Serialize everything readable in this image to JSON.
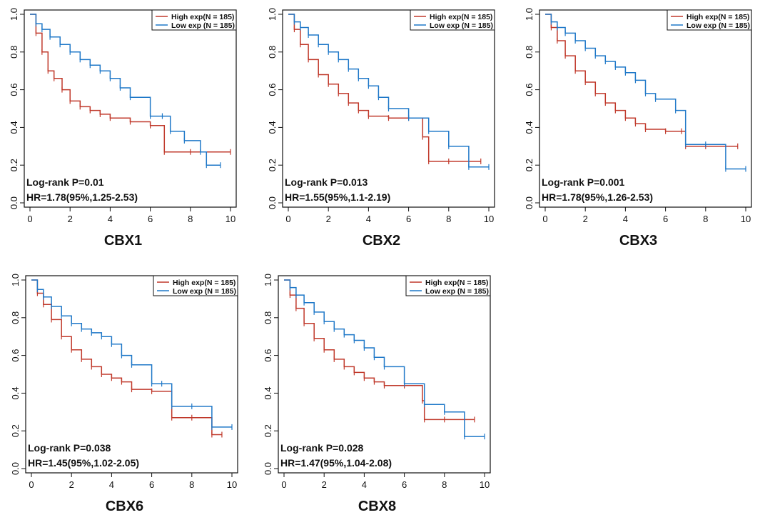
{
  "figure": {
    "panels": [
      {
        "gene": "CBX1",
        "logrank": "Log-rank P=0.01",
        "hr": "HR=1.78(95%,1.25-2.53)",
        "legend_high": "High exp(N = 185)",
        "legend_low": "Low exp (N = 185)"
      },
      {
        "gene": "CBX2",
        "logrank": "Log-rank P=0.013",
        "hr": "HR=1.55(95%,1.1-2.19)",
        "legend_high": "High exp(N = 185)",
        "legend_low": "Low exp (N = 185)"
      },
      {
        "gene": "CBX3",
        "logrank": "Log-rank P=0.001",
        "hr": "HR=1.78(95%,1.26-2.53)",
        "legend_high": "High exp(N = 185)",
        "legend_low": "Low exp (N = 185)"
      },
      {
        "gene": "CBX6",
        "logrank": "Log-rank P=0.038",
        "hr": "HR=1.45(95%,1.02-2.05)",
        "legend_high": "High exp(N = 185)",
        "legend_low": "Low exp (N = 185)"
      },
      {
        "gene": "CBX8",
        "logrank": "Log-rank P=0.028",
        "hr": "HR=1.47(95%,1.04-2.08)",
        "legend_high": "High exp(N = 185)",
        "legend_low": "Low exp (N = 185)"
      }
    ]
  },
  "colors": {
    "high": "#c0392b",
    "low": "#1f78c8",
    "axis": "#111111"
  },
  "chart_data": [
    {
      "type": "line",
      "title": "CBX1",
      "xlim": [
        0,
        10
      ],
      "ylim": [
        0,
        1
      ],
      "x_ticks": [
        0,
        2,
        4,
        6,
        8,
        10
      ],
      "y_ticks": [
        0.0,
        0.2,
        0.4,
        0.6,
        0.8,
        1.0
      ],
      "y_tick_labels": [
        "0.0",
        "0.2",
        "0.4",
        "0.6",
        "0.8",
        "1.0"
      ],
      "series": [
        {
          "name": "High exp(N = 185)",
          "key": "high",
          "x": [
            0,
            0.3,
            0.6,
            0.9,
            1.2,
            1.6,
            2.0,
            2.5,
            3.0,
            3.5,
            4.0,
            5.0,
            6.0,
            6.7,
            8.0,
            10.0
          ],
          "y": [
            1.0,
            0.9,
            0.8,
            0.7,
            0.66,
            0.6,
            0.54,
            0.51,
            0.49,
            0.47,
            0.45,
            0.43,
            0.41,
            0.27,
            0.27,
            0.27
          ]
        },
        {
          "name": "Low exp (N = 185)",
          "key": "low",
          "x": [
            0,
            0.3,
            0.6,
            1.0,
            1.5,
            2.0,
            2.5,
            3.0,
            3.5,
            4.0,
            4.5,
            5.0,
            6.0,
            6.6,
            7.0,
            7.7,
            8.5,
            8.8,
            9.5
          ],
          "y": [
            1.0,
            0.95,
            0.92,
            0.88,
            0.84,
            0.8,
            0.76,
            0.73,
            0.7,
            0.66,
            0.61,
            0.56,
            0.46,
            0.46,
            0.38,
            0.33,
            0.27,
            0.2,
            0.2
          ]
        }
      ]
    },
    {
      "type": "line",
      "title": "CBX2",
      "xlim": [
        0,
        10
      ],
      "ylim": [
        0,
        1
      ],
      "x_ticks": [
        0,
        2,
        4,
        6,
        8,
        10
      ],
      "y_ticks": [
        0.0,
        0.2,
        0.4,
        0.6,
        0.8,
        1.0
      ],
      "y_tick_labels": [
        "0.0",
        "0.2",
        "0.4",
        "0.6",
        "0.8",
        "1.0"
      ],
      "series": [
        {
          "name": "High exp(N = 185)",
          "key": "high",
          "x": [
            0,
            0.3,
            0.6,
            1.0,
            1.5,
            2.0,
            2.5,
            3.0,
            3.5,
            4.0,
            5.0,
            6.0,
            6.7,
            7.0,
            8.0,
            9.6
          ],
          "y": [
            1.0,
            0.92,
            0.84,
            0.76,
            0.68,
            0.63,
            0.58,
            0.53,
            0.49,
            0.46,
            0.45,
            0.45,
            0.35,
            0.22,
            0.22,
            0.22
          ]
        },
        {
          "name": "Low exp (N = 185)",
          "key": "low",
          "x": [
            0,
            0.3,
            0.6,
            1.0,
            1.5,
            2.0,
            2.5,
            3.0,
            3.5,
            4.0,
            4.5,
            5.0,
            6.0,
            7.0,
            8.0,
            9.0,
            10.0
          ],
          "y": [
            1.0,
            0.96,
            0.93,
            0.89,
            0.84,
            0.8,
            0.76,
            0.71,
            0.66,
            0.62,
            0.56,
            0.5,
            0.45,
            0.38,
            0.3,
            0.19,
            0.19
          ]
        }
      ]
    },
    {
      "type": "line",
      "title": "CBX3",
      "xlim": [
        0,
        10
      ],
      "ylim": [
        0,
        1
      ],
      "x_ticks": [
        0,
        2,
        4,
        6,
        8,
        10
      ],
      "y_ticks": [
        0.0,
        0.2,
        0.4,
        0.6,
        0.8,
        1.0
      ],
      "y_tick_labels": [
        "0.0",
        "0.2",
        "0.4",
        "0.6",
        "0.8",
        "1.0"
      ],
      "series": [
        {
          "name": "High exp(N = 185)",
          "key": "high",
          "x": [
            0,
            0.3,
            0.6,
            1.0,
            1.5,
            2.0,
            2.5,
            3.0,
            3.5,
            4.0,
            4.5,
            5.0,
            6.0,
            6.8,
            7.0,
            8.0,
            9.6
          ],
          "y": [
            1.0,
            0.93,
            0.86,
            0.78,
            0.7,
            0.64,
            0.58,
            0.53,
            0.49,
            0.45,
            0.42,
            0.39,
            0.38,
            0.38,
            0.3,
            0.3,
            0.3
          ]
        },
        {
          "name": "Low exp (N = 185)",
          "key": "low",
          "x": [
            0,
            0.3,
            0.6,
            1.0,
            1.5,
            2.0,
            2.5,
            3.0,
            3.5,
            4.0,
            4.5,
            5.0,
            5.5,
            6.5,
            7.0,
            8.0,
            9.0,
            10.0
          ],
          "y": [
            1.0,
            0.96,
            0.93,
            0.9,
            0.86,
            0.82,
            0.78,
            0.75,
            0.72,
            0.69,
            0.65,
            0.58,
            0.55,
            0.49,
            0.31,
            0.31,
            0.18,
            0.18
          ]
        }
      ]
    },
    {
      "type": "line",
      "title": "CBX6",
      "xlim": [
        0,
        10
      ],
      "ylim": [
        0,
        1
      ],
      "x_ticks": [
        0,
        2,
        4,
        6,
        8,
        10
      ],
      "y_ticks": [
        0.0,
        0.2,
        0.4,
        0.6,
        0.8,
        1.0
      ],
      "y_tick_labels": [
        "0.0",
        "0.2",
        "0.4",
        "0.6",
        "0.8",
        "1.0"
      ],
      "series": [
        {
          "name": "High exp(N = 185)",
          "key": "high",
          "x": [
            0,
            0.3,
            0.6,
            1.0,
            1.5,
            2.0,
            2.5,
            3.0,
            3.5,
            4.0,
            4.5,
            5.0,
            6.0,
            7.0,
            8.0,
            9.0,
            9.5
          ],
          "y": [
            1.0,
            0.93,
            0.87,
            0.79,
            0.7,
            0.63,
            0.58,
            0.54,
            0.5,
            0.48,
            0.46,
            0.42,
            0.41,
            0.27,
            0.27,
            0.18,
            0.18
          ]
        },
        {
          "name": "Low exp (N = 185)",
          "key": "low",
          "x": [
            0,
            0.3,
            0.6,
            1.0,
            1.5,
            2.0,
            2.5,
            3.0,
            3.5,
            4.0,
            4.5,
            5.0,
            6.0,
            6.5,
            7.0,
            8.0,
            9.0,
            10.0
          ],
          "y": [
            1.0,
            0.95,
            0.91,
            0.86,
            0.81,
            0.77,
            0.74,
            0.72,
            0.7,
            0.66,
            0.6,
            0.55,
            0.45,
            0.45,
            0.33,
            0.33,
            0.22,
            0.22
          ]
        }
      ]
    },
    {
      "type": "line",
      "title": "CBX8",
      "xlim": [
        0,
        10
      ],
      "ylim": [
        0,
        1
      ],
      "x_ticks": [
        0,
        2,
        4,
        6,
        8,
        10
      ],
      "y_ticks": [
        0.0,
        0.2,
        0.4,
        0.6,
        0.8,
        1.0
      ],
      "y_tick_labels": [
        "0.0",
        "0.2",
        "0.4",
        "0.6",
        "0.8",
        "1.0"
      ],
      "series": [
        {
          "name": "High exp(N = 185)",
          "key": "high",
          "x": [
            0,
            0.3,
            0.6,
            1.0,
            1.5,
            2.0,
            2.5,
            3.0,
            3.5,
            4.0,
            4.5,
            5.0,
            6.0,
            6.9,
            7.0,
            8.0,
            9.5
          ],
          "y": [
            1.0,
            0.92,
            0.85,
            0.77,
            0.69,
            0.63,
            0.58,
            0.54,
            0.51,
            0.48,
            0.46,
            0.44,
            0.44,
            0.36,
            0.26,
            0.26,
            0.26
          ]
        },
        {
          "name": "Low exp (N = 185)",
          "key": "low",
          "x": [
            0,
            0.3,
            0.6,
            1.0,
            1.5,
            2.0,
            2.5,
            3.0,
            3.5,
            4.0,
            4.5,
            5.0,
            6.0,
            7.0,
            8.0,
            9.0,
            10.0
          ],
          "y": [
            1.0,
            0.96,
            0.92,
            0.88,
            0.83,
            0.78,
            0.74,
            0.71,
            0.68,
            0.64,
            0.59,
            0.54,
            0.45,
            0.34,
            0.3,
            0.17,
            0.17
          ]
        }
      ]
    }
  ]
}
